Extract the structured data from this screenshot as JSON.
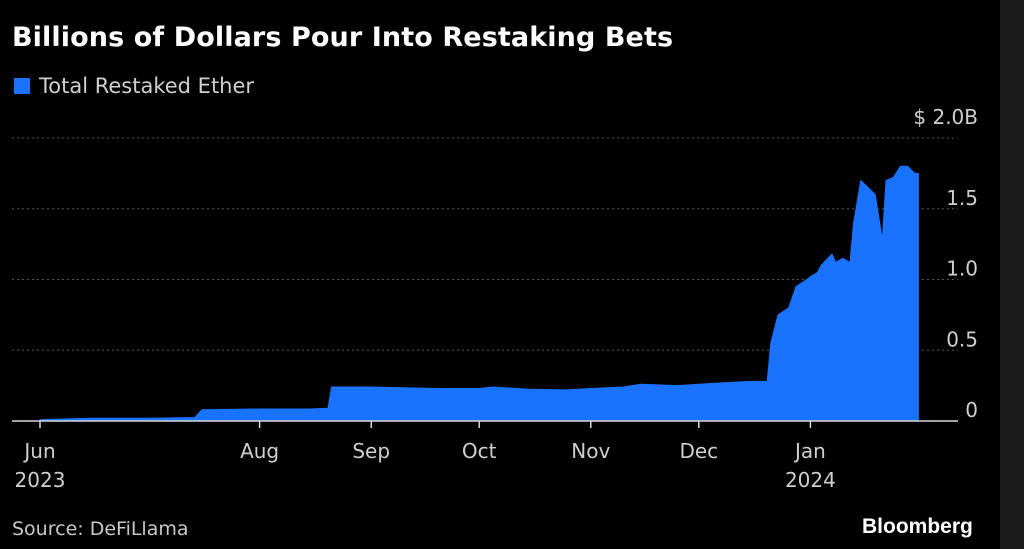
{
  "title": "Billions of Dollars Pour Into Restaking Bets",
  "source": "Source: DeFiLlama",
  "brand": "Bloomberg",
  "colors": {
    "series": "#1a73ff",
    "background": "#000000",
    "grid": "#555555",
    "text": "#cfcfcf"
  },
  "chart_data": {
    "type": "area",
    "title": "Billions of Dollars Pour Into Restaking Bets",
    "xlabel": "",
    "ylabel": "",
    "ylim": [
      0,
      2.0
    ],
    "y_ticks": [
      {
        "value": 0,
        "label": "0"
      },
      {
        "value": 0.5,
        "label": "0.5"
      },
      {
        "value": 1.0,
        "label": "1.0"
      },
      {
        "value": 1.5,
        "label": "1.5"
      },
      {
        "value": 2.0,
        "label": "$ 2.0B"
      }
    ],
    "x_ticks": [
      {
        "date": "2023-06-01",
        "label": "Jun",
        "year": "2023"
      },
      {
        "date": "2023-08-01",
        "label": "Aug"
      },
      {
        "date": "2023-09-01",
        "label": "Sep"
      },
      {
        "date": "2023-10-01",
        "label": "Oct"
      },
      {
        "date": "2023-11-01",
        "label": "Nov"
      },
      {
        "date": "2023-12-01",
        "label": "Dec"
      },
      {
        "date": "2024-01-01",
        "label": "Jan",
        "year": "2024"
      }
    ],
    "xlim": [
      "2023-06-01",
      "2024-02-24"
    ],
    "grid": true,
    "legend": "top-left",
    "series": [
      {
        "name": "Total Restaked Ether",
        "points": [
          [
            "2023-06-01",
            0.01
          ],
          [
            "2023-06-15",
            0.02
          ],
          [
            "2023-07-01",
            0.02
          ],
          [
            "2023-07-14",
            0.025
          ],
          [
            "2023-07-16",
            0.08
          ],
          [
            "2023-08-01",
            0.085
          ],
          [
            "2023-08-15",
            0.085
          ],
          [
            "2023-08-20",
            0.09
          ],
          [
            "2023-08-21",
            0.24
          ],
          [
            "2023-09-01",
            0.24
          ],
          [
            "2023-09-10",
            0.235
          ],
          [
            "2023-09-20",
            0.23
          ],
          [
            "2023-10-01",
            0.23
          ],
          [
            "2023-10-05",
            0.24
          ],
          [
            "2023-10-15",
            0.225
          ],
          [
            "2023-10-25",
            0.22
          ],
          [
            "2023-11-01",
            0.23
          ],
          [
            "2023-11-10",
            0.24
          ],
          [
            "2023-11-15",
            0.26
          ],
          [
            "2023-11-25",
            0.25
          ],
          [
            "2023-12-01",
            0.26
          ],
          [
            "2023-12-08",
            0.27
          ],
          [
            "2023-12-15",
            0.28
          ],
          [
            "2023-12-20",
            0.28
          ],
          [
            "2023-12-21",
            0.55
          ],
          [
            "2023-12-23",
            0.75
          ],
          [
            "2023-12-26",
            0.8
          ],
          [
            "2023-12-28",
            0.95
          ],
          [
            "2023-12-31",
            1.0
          ],
          [
            "2024-01-01",
            1.02
          ],
          [
            "2024-01-03",
            1.05
          ],
          [
            "2024-01-04",
            1.1
          ],
          [
            "2024-01-07",
            1.18
          ],
          [
            "2024-01-08",
            1.12
          ],
          [
            "2024-01-10",
            1.15
          ],
          [
            "2024-01-12",
            1.12
          ],
          [
            "2024-01-13",
            1.4
          ],
          [
            "2024-01-15",
            1.7
          ],
          [
            "2024-01-17",
            1.65
          ],
          [
            "2024-01-19",
            1.6
          ],
          [
            "2024-01-21",
            1.28
          ],
          [
            "2024-01-22",
            1.7
          ],
          [
            "2024-01-24",
            1.72
          ],
          [
            "2024-01-26",
            1.8
          ],
          [
            "2024-01-28",
            1.8
          ],
          [
            "2024-01-30",
            1.75
          ],
          [
            "2024-01-31",
            1.75
          ]
        ]
      }
    ]
  }
}
